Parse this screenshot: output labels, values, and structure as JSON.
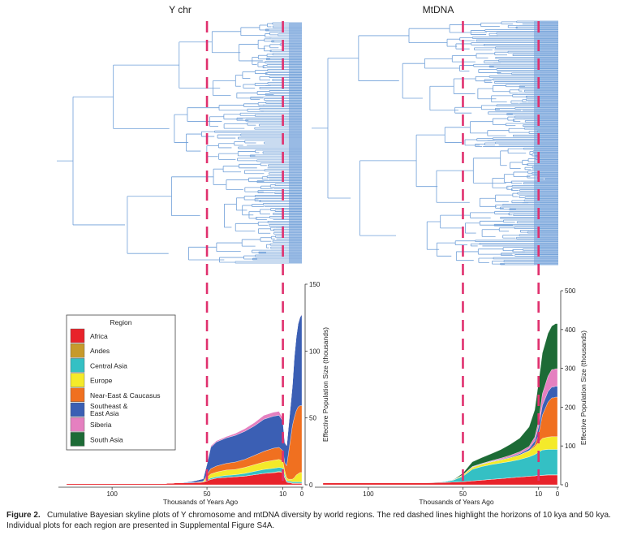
{
  "chart_data": [
    {
      "type": "area",
      "panel": "Y chromosome",
      "title": "Y chr",
      "xlabel": "Thousands of Years Ago",
      "ylabel": "Effective Population Size (thousands)",
      "xlim": [
        124,
        0
      ],
      "ylim": [
        0,
        150
      ],
      "xticks": [
        100,
        50,
        10,
        0
      ],
      "yticks": [
        0,
        50,
        100,
        150
      ],
      "vlines": [
        50,
        10
      ],
      "x": [
        124,
        80,
        72,
        65,
        58,
        52,
        50,
        48,
        45,
        40,
        35,
        30,
        25,
        20,
        15,
        12,
        10,
        9,
        8,
        7,
        6,
        5,
        4,
        3,
        2,
        1,
        0
      ],
      "series": [
        {
          "name": "Africa",
          "values": [
            1,
            1,
            1,
            1.5,
            1.5,
            2,
            3,
            4,
            5,
            5.5,
            6,
            6.5,
            7.5,
            8.5,
            9,
            9.5,
            9,
            5,
            2,
            1.5,
            1.5,
            1,
            1,
            1,
            1,
            1,
            1
          ]
        },
        {
          "name": "Andes",
          "values": [
            0,
            0,
            0,
            0,
            0,
            0,
            0,
            0,
            0,
            0,
            0,
            0,
            0,
            0,
            0.3,
            0.5,
            0.5,
            0.3,
            0.2,
            0.2,
            0.2,
            0.2,
            0.2,
            0.2,
            0.2,
            0.2,
            0.2
          ]
        },
        {
          "name": "Central Asia",
          "values": [
            0,
            0,
            0,
            0,
            0,
            0,
            0.5,
            1,
            1,
            1.5,
            1.5,
            2,
            2.5,
            3,
            3,
            3,
            3,
            2,
            1,
            1,
            1,
            1,
            1,
            1,
            1,
            1,
            1
          ]
        },
        {
          "name": "Europe",
          "values": [
            0,
            0,
            0,
            0,
            0,
            0.5,
            2,
            3,
            3.5,
            4,
            4,
            4.5,
            5,
            5.5,
            6,
            6,
            5,
            3,
            2,
            1.5,
            1.5,
            2,
            3,
            5,
            6,
            7,
            7
          ]
        },
        {
          "name": "Near-East & Caucasus",
          "values": [
            0,
            0,
            0,
            0,
            0,
            0,
            2,
            4,
            4.5,
            5,
            5.5,
            6,
            7,
            8,
            9,
            9,
            8,
            6,
            9,
            20,
            30,
            40,
            45,
            48,
            50,
            50,
            50
          ]
        },
        {
          "name": "Southeast & East Asia",
          "values": [
            0,
            0,
            0,
            0,
            1,
            2,
            8,
            16,
            18,
            19,
            20,
            21,
            22,
            24,
            24,
            24,
            22,
            15,
            15,
            20,
            25,
            30,
            45,
            55,
            62,
            66,
            68
          ]
        },
        {
          "name": "Siberia",
          "values": [
            0,
            0,
            0,
            0,
            0,
            0,
            0.5,
            1,
            1,
            1,
            1.5,
            2,
            2.5,
            3,
            3,
            3,
            2,
            1,
            0.5,
            0.5,
            0.5,
            0.5,
            0.5,
            0.5,
            0.5,
            0.5,
            0.5
          ]
        },
        {
          "name": "South Asia",
          "values": [
            0,
            0,
            0,
            0,
            0,
            0,
            0,
            0,
            0,
            0,
            0,
            0,
            0,
            0,
            0,
            0,
            0,
            0,
            0,
            0,
            0,
            0,
            0,
            0,
            0,
            0,
            0
          ]
        }
      ]
    },
    {
      "type": "area",
      "panel": "mtDNA",
      "title": "MtDNA",
      "xlabel": "Thousands of Years Ago",
      "ylabel": "Effective Population Size (thousands)",
      "xlim": [
        124,
        0
      ],
      "ylim": [
        0,
        500
      ],
      "xticks": [
        100,
        50,
        10,
        0
      ],
      "yticks": [
        0,
        100,
        200,
        300,
        400,
        500
      ],
      "vlines": [
        50,
        10
      ],
      "x": [
        124,
        90,
        80,
        70,
        60,
        55,
        50,
        45,
        40,
        35,
        30,
        25,
        20,
        15,
        12,
        10,
        8,
        5,
        3,
        2,
        1,
        0
      ],
      "series": [
        {
          "name": "Africa",
          "values": [
            5,
            5,
            5,
            5,
            6,
            7,
            8,
            10,
            12,
            14,
            16,
            18,
            20,
            22,
            23,
            24,
            24,
            25,
            25,
            25,
            25,
            25
          ]
        },
        {
          "name": "Andes",
          "values": [
            0,
            0,
            0,
            0,
            0,
            0,
            0,
            0,
            0,
            0,
            0,
            0,
            0,
            0,
            0,
            0,
            0.5,
            1,
            1,
            1,
            1,
            1
          ]
        },
        {
          "name": "Central Asia",
          "values": [
            0,
            0,
            0,
            0.5,
            2,
            5,
            14,
            30,
            35,
            38,
            40,
            42,
            45,
            50,
            55,
            60,
            65,
            65,
            65,
            65,
            65,
            65
          ]
        },
        {
          "name": "Europe",
          "values": [
            0,
            0,
            0,
            0,
            0,
            0.5,
            3,
            5,
            6,
            7,
            8,
            10,
            12,
            15,
            20,
            25,
            30,
            32,
            33,
            33,
            33,
            33
          ]
        },
        {
          "name": "Near-East & Caucasus",
          "values": [
            0,
            0,
            0,
            0,
            0,
            0,
            0,
            0,
            0,
            0,
            0,
            0,
            0,
            1,
            5,
            20,
            60,
            90,
            100,
            100,
            102,
            102
          ]
        },
        {
          "name": "Southeast & East Asia",
          "values": [
            0,
            0,
            0,
            0,
            0,
            0,
            0.5,
            1,
            1,
            1,
            1.5,
            2,
            3,
            5,
            10,
            20,
            25,
            27,
            28,
            28,
            28,
            28
          ]
        },
        {
          "name": "Siberia",
          "values": [
            0,
            0,
            0,
            0,
            0,
            0,
            0.5,
            1,
            1,
            2,
            3,
            4,
            5,
            6,
            10,
            15,
            30,
            40,
            45,
            45,
            45,
            45
          ]
        },
        {
          "name": "South Asia",
          "values": [
            0,
            0,
            0,
            0,
            0,
            0.5,
            4,
            12,
            15,
            18,
            22,
            28,
            35,
            50,
            70,
            100,
            105,
            110,
            112,
            115,
            116,
            116
          ]
        }
      ]
    }
  ],
  "legend": {
    "title": "Region",
    "items": [
      {
        "label": "Africa",
        "color": "#e8232b"
      },
      {
        "label": "Andes",
        "color": "#c79a2c"
      },
      {
        "label": "Central Asia",
        "color": "#34c0c4"
      },
      {
        "label": "Europe",
        "color": "#f4ea2a"
      },
      {
        "label": "Near-East & Caucasus",
        "color": "#f07020"
      },
      {
        "label": "Southeast &\nEast Asia",
        "color": "#3b5fb4"
      },
      {
        "label": "Siberia",
        "color": "#e580c0"
      },
      {
        "label": "South Asia",
        "color": "#1d6b36"
      }
    ]
  },
  "caption": {
    "label": "Figure 2.",
    "text": "Cumulative Bayesian skyline plots of Y chromosome and mtDNA diversity by world regions. The red dashed lines highlight the horizons of 10 kya and 50 kya. Individual plots for each region are presented in Supplemental Figure S4A."
  },
  "colors": {
    "tree": "#6f9fd8",
    "dashed": "#e0306e"
  }
}
